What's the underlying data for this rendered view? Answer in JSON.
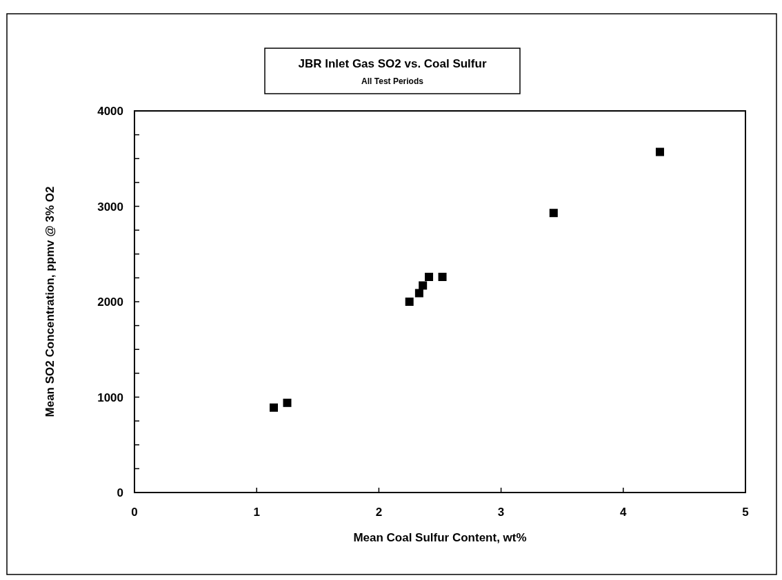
{
  "chart_data": {
    "type": "scatter",
    "title": "JBR Inlet Gas SO2 vs. Coal Sulfur",
    "subtitle": "All Test Periods",
    "xlabel": "Mean Coal Sulfur Content, wt%",
    "ylabel": "Mean SO2 Concentration, ppmv @ 3% O2",
    "series": [
      {
        "color": "#000000",
        "x": [
          1.14,
          1.25,
          2.25,
          2.33,
          2.36,
          2.41,
          2.52,
          3.43,
          4.3
        ],
        "values": [
          890,
          940,
          2000,
          2090,
          2170,
          2260,
          2260,
          2930,
          3570
        ]
      }
    ],
    "xlim": [
      0,
      5
    ],
    "xticks": [
      0,
      1,
      2,
      3,
      4,
      5
    ],
    "ylim": [
      0,
      4000
    ],
    "yticks": [
      0,
      {
        "value": 250,
        "label": null
      },
      {
        "value": 500,
        "label": null
      },
      {
        "value": 750,
        "label": null
      },
      1000,
      {
        "value": 1250,
        "label": null
      },
      {
        "value": 1500,
        "label": null
      },
      {
        "value": 1750,
        "label": null
      },
      2000,
      {
        "value": 2250,
        "label": null
      },
      {
        "value": 2500,
        "label": null
      },
      {
        "value": 2750,
        "label": null
      },
      3000,
      {
        "value": 3250,
        "label": null
      },
      {
        "value": 3500,
        "label": null
      },
      {
        "value": 3750,
        "label": null
      },
      4000
    ],
    "grid": false,
    "marker": "square"
  }
}
